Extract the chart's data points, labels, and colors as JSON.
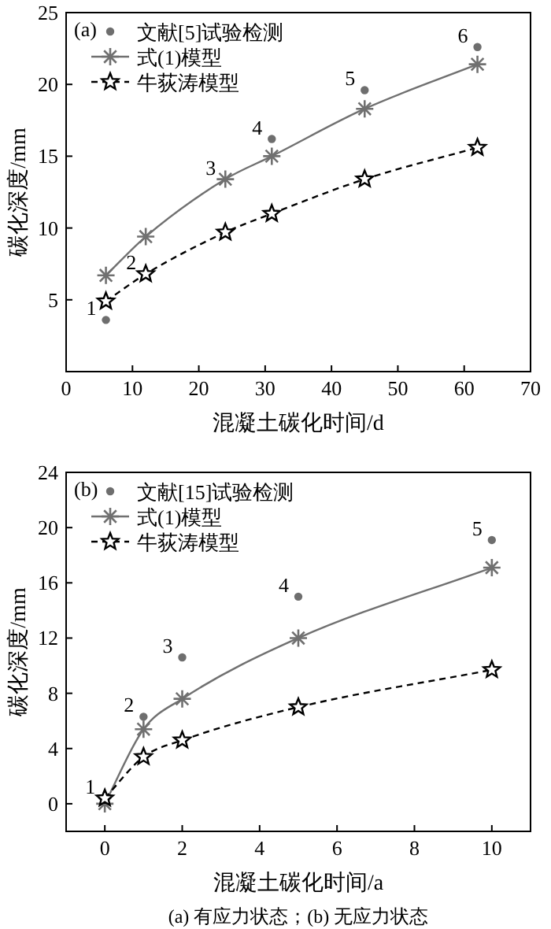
{
  "chart_data": [
    {
      "type": "line",
      "xlabel": "混凝土碳化时间/d",
      "ylabel": "碳化深度/mm",
      "xlim": [
        0,
        70
      ],
      "ylim": [
        0,
        25
      ],
      "xticks": [
        0,
        10,
        20,
        30,
        40,
        50,
        60,
        70
      ],
      "yticks": [
        5,
        10,
        15,
        20,
        25
      ],
      "legend": "top left",
      "annotations": [
        "(a)",
        {
          "text": "1",
          "x": 6,
          "y": 3.6
        },
        {
          "text": "2",
          "x": 12,
          "y": 6.8
        },
        {
          "text": "3",
          "x": 24,
          "y": 13.4
        },
        {
          "text": "4",
          "x": 31,
          "y": 16.2
        },
        {
          "text": "5",
          "x": 45,
          "y": 19.6
        },
        {
          "text": "6",
          "x": 62,
          "y": 22.6
        }
      ],
      "x": [
        6,
        12,
        24,
        31,
        45,
        62
      ],
      "series": [
        {
          "name": "文献[5]试验检测",
          "type": "scatter",
          "marker": "circle",
          "color": "#6e6e6e",
          "values": [
            3.6,
            null,
            null,
            16.2,
            19.6,
            22.6
          ]
        },
        {
          "name": "式(1)模型",
          "type": "line",
          "marker": "cross",
          "line_style": "solid",
          "color": "#707070",
          "values": [
            6.7,
            9.4,
            13.4,
            15.0,
            18.3,
            21.4
          ]
        },
        {
          "name": "牛荻涛模型",
          "type": "line",
          "marker": "star",
          "line_style": "dashed",
          "color": "#000000",
          "values": [
            4.9,
            6.8,
            9.7,
            11.0,
            13.4,
            15.6
          ]
        }
      ]
    },
    {
      "type": "line",
      "xlabel": "混凝土碳化时间/a",
      "ylabel": "碳化深度/mm",
      "xlim": [
        -1,
        11
      ],
      "ylim": [
        -2,
        24
      ],
      "xticks": [
        0,
        2,
        4,
        6,
        8,
        10
      ],
      "yticks": [
        0,
        4,
        8,
        12,
        16,
        20,
        24
      ],
      "legend": "top left",
      "annotations": [
        "(b)",
        {
          "text": "1",
          "x": 0,
          "y": 0.4
        },
        {
          "text": "2",
          "x": 1,
          "y": 6.3
        },
        {
          "text": "3",
          "x": 2,
          "y": 10.6
        },
        {
          "text": "4",
          "x": 5,
          "y": 15.0
        },
        {
          "text": "5",
          "x": 10,
          "y": 19.1
        },
        "(a) 有应力状态；(b) 无应力状态"
      ],
      "x": [
        0,
        1,
        2,
        5,
        10
      ],
      "series": [
        {
          "name": "文献[15]试验检测",
          "type": "scatter",
          "marker": "circle",
          "color": "#6e6e6e",
          "values": [
            null,
            6.3,
            10.6,
            15.0,
            19.1
          ]
        },
        {
          "name": "式(1)模型",
          "type": "line",
          "marker": "cross",
          "line_style": "solid",
          "color": "#707070",
          "values": [
            0,
            5.4,
            7.6,
            12.0,
            17.1
          ]
        },
        {
          "name": "牛荻涛模型",
          "type": "line",
          "marker": "star",
          "line_style": "dashed",
          "color": "#000000",
          "values": [
            0.4,
            3.4,
            4.6,
            7.0,
            9.7
          ]
        }
      ]
    }
  ]
}
